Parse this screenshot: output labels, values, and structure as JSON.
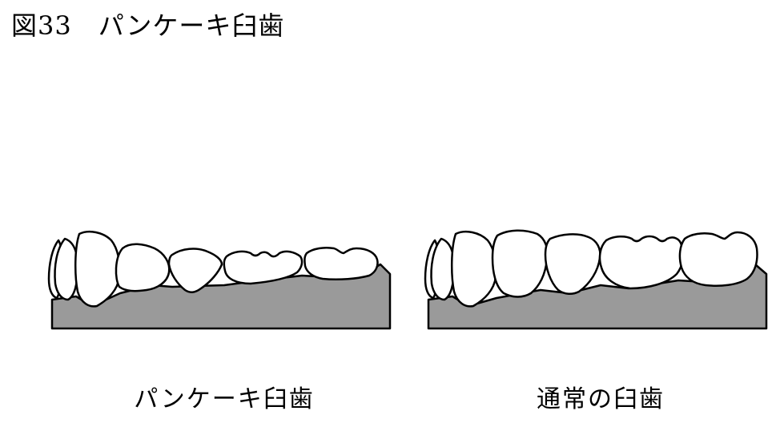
{
  "figure": {
    "title": "図33　パンケーキ臼歯",
    "left_panel": {
      "caption": "パンケーキ臼歯"
    },
    "right_panel": {
      "caption": "通常の臼歯"
    },
    "colors": {
      "gum": "#9a9a9a",
      "tooth": "#ffffff",
      "outline": "#000000",
      "background": "#ffffff"
    }
  }
}
